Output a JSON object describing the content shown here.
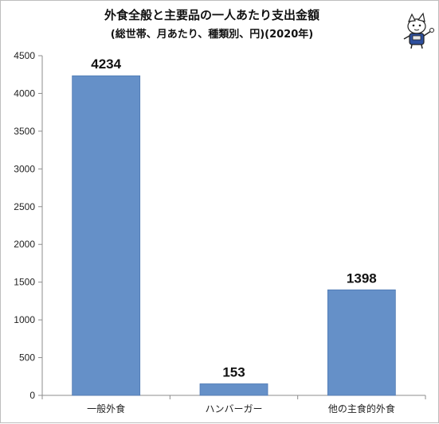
{
  "chart_data": {
    "type": "bar",
    "title": "外食全般と主要品の一人あたり支出金額",
    "subtitle": "(総世帯、月あたり、種類別、円)(2020年)",
    "categories": [
      "一般外食",
      "ハンバーガー",
      "他の主食的外食"
    ],
    "values": [
      4234,
      153,
      1398
    ],
    "data_labels": [
      "4234",
      "153",
      "1398"
    ],
    "yticks": [
      0,
      500,
      1000,
      1500,
      2000,
      2500,
      3000,
      3500,
      4000,
      4500
    ],
    "ylim": [
      0,
      4500
    ],
    "grid": false,
    "legend": "none",
    "bar_color": "#6590c8",
    "axis_color": "#8c8c8c"
  },
  "mascot_icon": "mascot-character-icon"
}
